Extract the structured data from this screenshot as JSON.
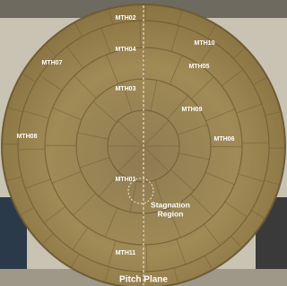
{
  "labels": [
    "MTH02",
    "MTH04",
    "MTH10",
    "MTH07",
    "MTH05",
    "MTH03",
    "MTH09",
    "MTH08",
    "MTH06",
    "MTH01",
    "MTH11"
  ],
  "annotation": [
    "Stagnation",
    "Region"
  ],
  "caption": "Pitch Plane"
}
